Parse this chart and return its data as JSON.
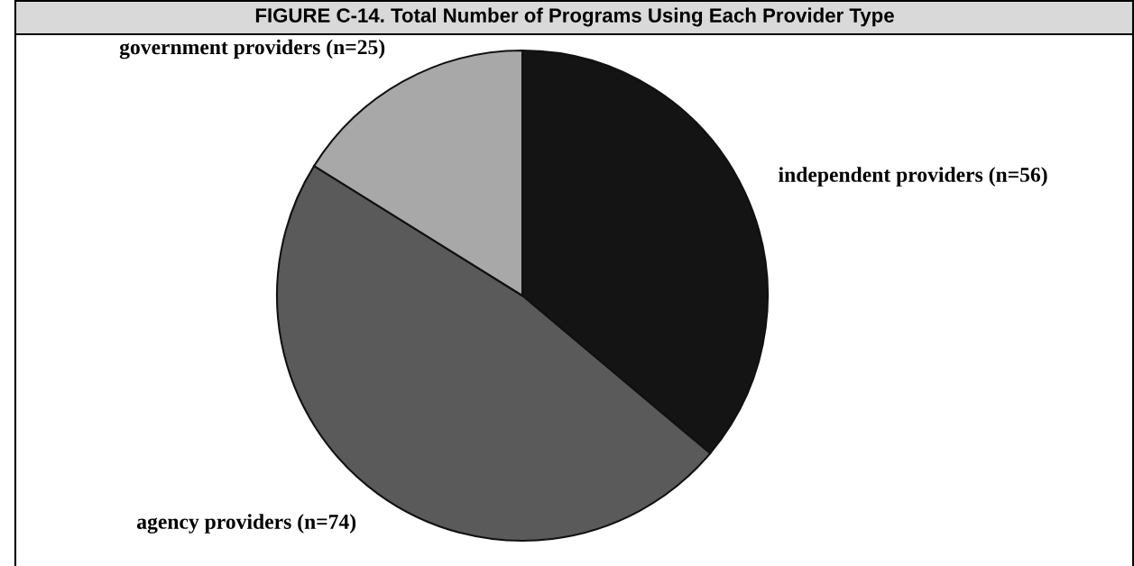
{
  "chart_data": {
    "type": "pie",
    "title": "FIGURE C-14. Total Number of Programs Using Each Provider Type",
    "categories": [
      "independent providers",
      "agency providers",
      "government providers"
    ],
    "values": [
      56,
      74,
      25
    ],
    "colors": [
      "#141414",
      "#5a5a5a",
      "#a8a8a8"
    ],
    "value_labels": [
      "(n=56)",
      "(n=74)",
      "(n=25)"
    ]
  }
}
